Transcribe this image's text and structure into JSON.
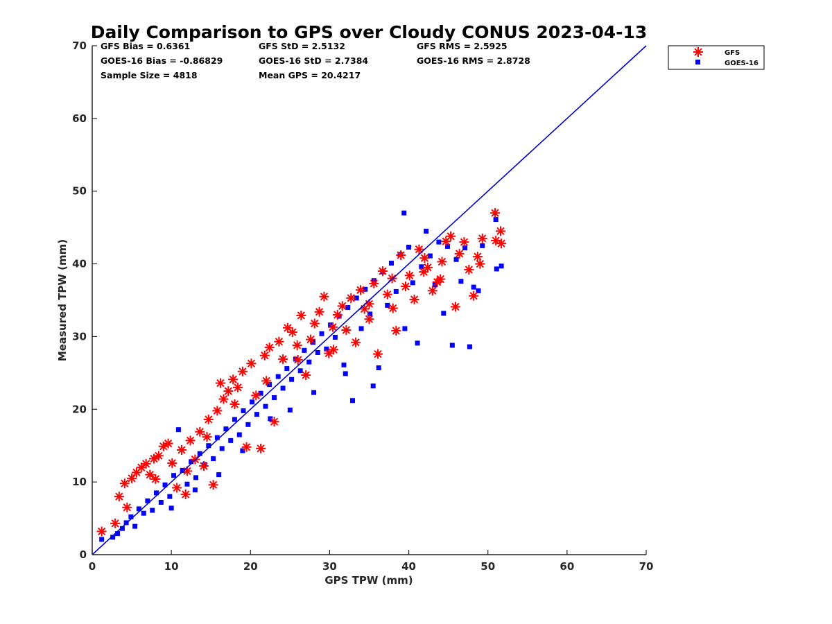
{
  "colors": {
    "gfs": "#ff0000",
    "goes": "#0000ff",
    "one_to_one_line": "#0000cc",
    "axis": "#262626"
  },
  "chart_data": {
    "type": "scatter",
    "title": "Daily Comparison to GPS over Cloudy CONUS 2023-04-13",
    "xlabel": "GPS TPW (mm)",
    "ylabel": "Measured TPW (mm)",
    "xlim": [
      0,
      70
    ],
    "ylim": [
      0,
      70
    ],
    "xticks": [
      0,
      10,
      20,
      30,
      40,
      50,
      60,
      70
    ],
    "yticks": [
      0,
      10,
      20,
      30,
      40,
      50,
      60,
      70
    ],
    "grid": false,
    "legend_position": "outside top-right",
    "stats": {
      "gfs_bias": "GFS Bias = 0.6361",
      "gfs_std": "GFS StD = 2.5132",
      "gfs_rms": "GFS RMS = 2.5925",
      "goes_bias": "GOES-16 Bias = -0.86829",
      "goes_std": "GOES-16 StD = 2.7384",
      "goes_rms": "GOES-16 RMS = 2.8728",
      "sample_size": "Sample Size = 4818",
      "mean_gps": "Mean GPS = 20.4217"
    },
    "reference_line": {
      "x": [
        0,
        70
      ],
      "y": [
        0,
        70
      ]
    },
    "series": [
      {
        "name": "GFS",
        "marker": "asterisk",
        "points": [
          [
            1.2,
            3.2
          ],
          [
            2.9,
            4.3
          ],
          [
            3.4,
            8.0
          ],
          [
            4.1,
            9.8
          ],
          [
            4.4,
            6.5
          ],
          [
            5.0,
            10.5
          ],
          [
            5.6,
            11.3
          ],
          [
            6.2,
            12.0
          ],
          [
            6.8,
            12.5
          ],
          [
            7.3,
            11.0
          ],
          [
            7.8,
            13.2
          ],
          [
            8.4,
            13.6
          ],
          [
            9.0,
            14.9
          ],
          [
            9.6,
            15.3
          ],
          [
            10.1,
            12.6
          ],
          [
            10.7,
            9.2
          ],
          [
            11.3,
            14.4
          ],
          [
            11.8,
            8.3
          ],
          [
            12.4,
            15.7
          ],
          [
            13.0,
            13.1
          ],
          [
            13.6,
            16.9
          ],
          [
            14.1,
            12.2
          ],
          [
            14.7,
            18.6
          ],
          [
            15.3,
            9.6
          ],
          [
            15.8,
            19.8
          ],
          [
            16.2,
            23.6
          ],
          [
            16.6,
            21.4
          ],
          [
            17.2,
            22.5
          ],
          [
            17.8,
            24.1
          ],
          [
            18.4,
            23.0
          ],
          [
            19.0,
            25.2
          ],
          [
            19.5,
            14.8
          ],
          [
            20.1,
            26.3
          ],
          [
            20.7,
            21.9
          ],
          [
            21.3,
            14.6
          ],
          [
            21.8,
            27.4
          ],
          [
            22.4,
            28.5
          ],
          [
            23.0,
            18.3
          ],
          [
            23.6,
            29.3
          ],
          [
            24.1,
            26.9
          ],
          [
            24.7,
            31.2
          ],
          [
            25.3,
            30.6
          ],
          [
            25.9,
            28.8
          ],
          [
            26.4,
            32.9
          ],
          [
            27.0,
            24.7
          ],
          [
            27.6,
            29.6
          ],
          [
            28.1,
            31.8
          ],
          [
            28.7,
            33.4
          ],
          [
            29.3,
            35.5
          ],
          [
            29.9,
            27.7
          ],
          [
            30.4,
            31.3
          ],
          [
            31.0,
            33.0
          ],
          [
            31.6,
            34.2
          ],
          [
            32.1,
            30.9
          ],
          [
            32.7,
            35.3
          ],
          [
            33.3,
            29.2
          ],
          [
            33.9,
            36.4
          ],
          [
            34.4,
            33.8
          ],
          [
            35.0,
            34.5
          ],
          [
            35.6,
            37.3
          ],
          [
            36.1,
            27.6
          ],
          [
            36.7,
            39.0
          ],
          [
            37.3,
            35.8
          ],
          [
            37.9,
            38.0
          ],
          [
            38.4,
            30.8
          ],
          [
            39.0,
            41.2
          ],
          [
            39.6,
            36.9
          ],
          [
            40.1,
            38.4
          ],
          [
            40.7,
            35.1
          ],
          [
            41.3,
            42.0
          ],
          [
            41.9,
            38.9
          ],
          [
            42.4,
            39.5
          ],
          [
            43.0,
            36.3
          ],
          [
            43.6,
            37.5
          ],
          [
            44.2,
            40.3
          ],
          [
            44.7,
            43.1
          ],
          [
            45.3,
            43.8
          ],
          [
            45.9,
            34.1
          ],
          [
            46.4,
            41.4
          ],
          [
            47.0,
            43.0
          ],
          [
            47.6,
            39.2
          ],
          [
            48.2,
            35.6
          ],
          [
            48.7,
            41.0
          ],
          [
            49.3,
            43.5
          ],
          [
            49.0,
            40.0
          ],
          [
            50.9,
            47.0
          ],
          [
            51.0,
            43.2
          ],
          [
            51.6,
            44.5
          ],
          [
            51.7,
            42.8
          ],
          [
            8.0,
            10.4
          ],
          [
            12.0,
            11.5
          ],
          [
            14.5,
            16.2
          ],
          [
            18.0,
            20.7
          ],
          [
            22.0,
            23.9
          ],
          [
            26.0,
            26.8
          ],
          [
            30.5,
            28.2
          ],
          [
            35.0,
            32.4
          ],
          [
            38.0,
            33.9
          ],
          [
            42.0,
            40.8
          ],
          [
            44.0,
            37.9
          ]
        ]
      },
      {
        "name": "GOES-16",
        "marker": "square",
        "points": [
          [
            1.2,
            2.1
          ],
          [
            2.6,
            2.4
          ],
          [
            3.2,
            2.9
          ],
          [
            3.8,
            3.6
          ],
          [
            4.3,
            4.4
          ],
          [
            4.9,
            5.2
          ],
          [
            5.4,
            3.9
          ],
          [
            5.9,
            6.3
          ],
          [
            6.5,
            5.7
          ],
          [
            7.0,
            7.4
          ],
          [
            7.6,
            6.1
          ],
          [
            8.1,
            8.5
          ],
          [
            8.7,
            7.2
          ],
          [
            9.2,
            9.6
          ],
          [
            9.8,
            8.0
          ],
          [
            10.3,
            10.9
          ],
          [
            10.9,
            17.2
          ],
          [
            11.4,
            11.6
          ],
          [
            12.0,
            9.7
          ],
          [
            12.5,
            12.8
          ],
          [
            13.1,
            10.6
          ],
          [
            13.6,
            13.9
          ],
          [
            14.2,
            12.4
          ],
          [
            14.7,
            15.0
          ],
          [
            15.3,
            13.2
          ],
          [
            15.8,
            16.1
          ],
          [
            16.4,
            14.6
          ],
          [
            16.9,
            17.3
          ],
          [
            17.5,
            15.7
          ],
          [
            18.0,
            18.6
          ],
          [
            18.6,
            16.5
          ],
          [
            19.1,
            19.8
          ],
          [
            19.7,
            17.9
          ],
          [
            20.2,
            21.0
          ],
          [
            20.8,
            19.3
          ],
          [
            21.3,
            22.2
          ],
          [
            21.9,
            20.4
          ],
          [
            22.4,
            23.4
          ],
          [
            23.0,
            21.6
          ],
          [
            23.5,
            24.5
          ],
          [
            24.1,
            22.9
          ],
          [
            24.6,
            25.6
          ],
          [
            25.2,
            24.1
          ],
          [
            25.7,
            26.9
          ],
          [
            26.3,
            25.3
          ],
          [
            26.8,
            28.1
          ],
          [
            27.4,
            26.5
          ],
          [
            27.9,
            29.2
          ],
          [
            28.5,
            27.8
          ],
          [
            29.0,
            30.4
          ],
          [
            29.6,
            28.3
          ],
          [
            30.1,
            31.6
          ],
          [
            30.7,
            29.9
          ],
          [
            31.2,
            32.8
          ],
          [
            31.8,
            26.1
          ],
          [
            32.3,
            34.0
          ],
          [
            32.9,
            21.2
          ],
          [
            33.4,
            35.3
          ],
          [
            34.0,
            31.1
          ],
          [
            34.5,
            36.5
          ],
          [
            35.1,
            33.1
          ],
          [
            35.6,
            37.7
          ],
          [
            36.2,
            25.7
          ],
          [
            36.7,
            38.9
          ],
          [
            37.3,
            34.3
          ],
          [
            37.8,
            40.1
          ],
          [
            38.4,
            36.2
          ],
          [
            38.9,
            41.3
          ],
          [
            39.4,
            47.0
          ],
          [
            40.0,
            42.3
          ],
          [
            40.5,
            37.4
          ],
          [
            41.1,
            29.1
          ],
          [
            41.6,
            39.6
          ],
          [
            42.2,
            44.5
          ],
          [
            42.7,
            41.1
          ],
          [
            43.3,
            37.1
          ],
          [
            43.8,
            43.0
          ],
          [
            44.4,
            33.2
          ],
          [
            44.9,
            42.4
          ],
          [
            45.5,
            28.8
          ],
          [
            46.0,
            40.6
          ],
          [
            46.6,
            37.6
          ],
          [
            47.1,
            42.2
          ],
          [
            47.7,
            28.6
          ],
          [
            48.2,
            36.8
          ],
          [
            48.8,
            36.3
          ],
          [
            49.3,
            42.5
          ],
          [
            51.0,
            46.1
          ],
          [
            51.1,
            39.3
          ],
          [
            51.7,
            39.7
          ],
          [
            10.0,
            6.4
          ],
          [
            13.0,
            8.9
          ],
          [
            16.0,
            11.0
          ],
          [
            19.0,
            14.3
          ],
          [
            22.5,
            18.7
          ],
          [
            25.0,
            19.9
          ],
          [
            28.0,
            22.3
          ],
          [
            32.0,
            24.9
          ],
          [
            35.5,
            23.2
          ],
          [
            39.5,
            31.1
          ]
        ]
      }
    ]
  }
}
